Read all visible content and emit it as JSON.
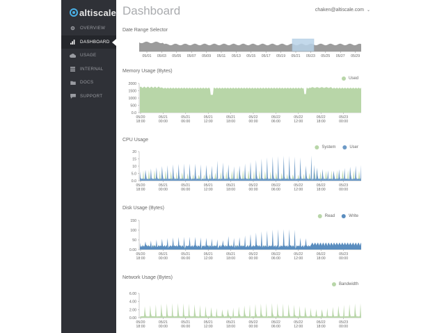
{
  "brand": {
    "name": "altiscale"
  },
  "header": {
    "title": "Dashboard",
    "user": "chaken@altiscale.com"
  },
  "nav": [
    {
      "label": "OVERVIEW",
      "icon": "gear-icon",
      "active": false
    },
    {
      "label": "DASHBOARD",
      "icon": "bar-chart-icon",
      "active": true
    },
    {
      "label": "USAGE",
      "icon": "cloud-icon",
      "active": false
    },
    {
      "label": "INTERNAL",
      "icon": "list-icon",
      "active": false
    },
    {
      "label": "DOCS",
      "icon": "folder-icon",
      "active": false
    },
    {
      "label": "SUPPORT",
      "icon": "chat-bubble-icon",
      "active": false
    }
  ],
  "colors": {
    "used": "#b8d6a8",
    "system": "#b8d6a8",
    "user": "#6d9ac6",
    "read": "#b8d6a8",
    "write": "#5a8dbf",
    "bandwidth": "#b8d6a8",
    "range": "#9c9c9c",
    "selection": "#b9d3e8"
  },
  "range_selector": {
    "title": "Date Range Selector",
    "ticks": [
      "05/01",
      "05/03",
      "05/05",
      "05/07",
      "05/09",
      "05/11",
      "05/13",
      "05/15",
      "05/17",
      "05/19",
      "05/21",
      "05/23",
      "05/25",
      "05/27",
      "05/29"
    ]
  },
  "time_ticks": [
    [
      "05/20",
      "18:00"
    ],
    [
      "05/21",
      "00:00"
    ],
    [
      "05/21",
      "06:00"
    ],
    [
      "05/21",
      "12:00"
    ],
    [
      "05/21",
      "18:00"
    ],
    [
      "05/22",
      "00:00"
    ],
    [
      "05/22",
      "06:00"
    ],
    [
      "05/22",
      "12:00"
    ],
    [
      "05/22",
      "18:00"
    ],
    [
      "05/23",
      "00:00"
    ]
  ],
  "chart_data": [
    {
      "type": "area",
      "title": "Memory Usage (Bytes)",
      "y_ticks": [
        "2000",
        "1500",
        "1000",
        "500",
        "0.0"
      ],
      "ylim": [
        0,
        2050
      ],
      "series": [
        {
          "name": "Used",
          "summary": "roughly flat near 1750 with dips to ~1250 at 05/21 12:00 and at 05/22 12:00"
        }
      ]
    },
    {
      "type": "area",
      "title": "CPU Usage",
      "y_ticks": [
        "20",
        "15",
        "10",
        "5.0",
        "0.0"
      ],
      "ylim": [
        0,
        22
      ],
      "series": [
        {
          "name": "System"
        },
        {
          "name": "User",
          "summary": "periodic spikes 8-20, baseline ~1"
        }
      ]
    },
    {
      "type": "area",
      "title": "Disk Usage (Bytes)",
      "y_ticks": [
        "150",
        "100",
        "50",
        "0.00"
      ],
      "ylim": [
        0,
        160
      ],
      "series": [
        {
          "name": "Read"
        },
        {
          "name": "Write",
          "summary": "periodic spikes 20-120, baseline ~10"
        }
      ]
    },
    {
      "type": "area",
      "title": "Network Usage (Bytes)",
      "y_ticks": [
        "6.00",
        "4.00",
        "2.00",
        "0.00"
      ],
      "ylim": [
        0,
        7
      ],
      "series": [
        {
          "name": "Bandwidth",
          "summary": "periodic spikes 2-6, baseline ~0.3"
        }
      ]
    }
  ]
}
